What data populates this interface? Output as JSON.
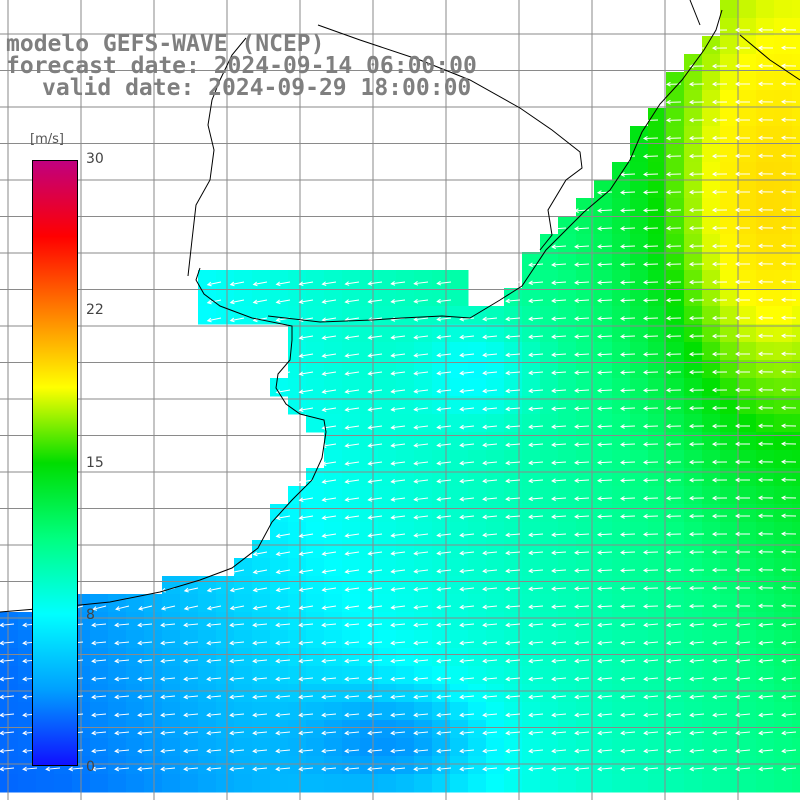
{
  "title": {
    "model": "modelo GEFS-WAVE (NCEP)",
    "forecast_date": "forecast date: 2024-09-14 06:00:00",
    "valid_date": "valid date: 2024-09-29 18:00:00"
  },
  "colorbar": {
    "units": "[m/s]",
    "ticks": [
      "30",
      "22",
      "15",
      "8",
      "0"
    ],
    "tick_values": [
      30,
      22,
      15,
      8,
      0
    ],
    "range": [
      0,
      30
    ],
    "colors": [
      "#1010ff",
      "#00a0ff",
      "#00ffff",
      "#00ff80",
      "#00dd00",
      "#ffff00",
      "#ff8000",
      "#ff0000",
      "#c0007f"
    ]
  },
  "map": {
    "land_color": "#ffffff",
    "coastline_color": "#000000",
    "grid_color": "#8a8a8a",
    "vector_color": "#ffffff"
  }
}
